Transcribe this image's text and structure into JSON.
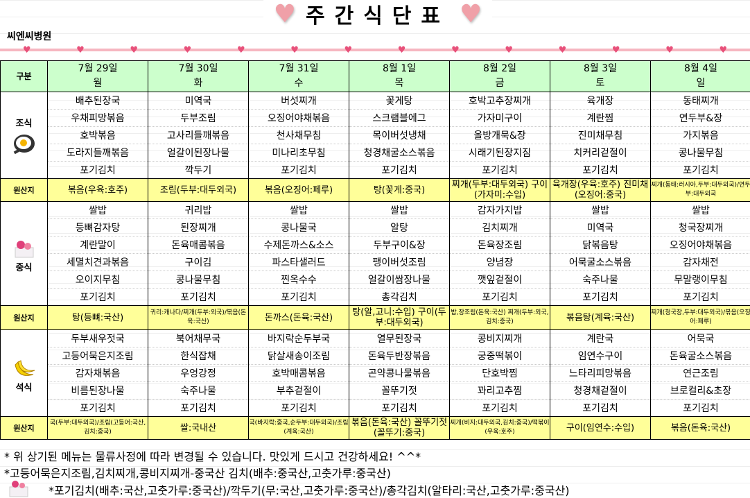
{
  "title": "주간식단표",
  "hospital": "씨엔씨병원",
  "header": {
    "label": "구분",
    "days": [
      {
        "date": "7월 29일",
        "dow": "월"
      },
      {
        "date": "7월 30일",
        "dow": "화"
      },
      {
        "date": "7월 31일",
        "dow": "수"
      },
      {
        "date": "8월 1일",
        "dow": "목"
      },
      {
        "date": "8월 2일",
        "dow": "금"
      },
      {
        "date": "8월 3일",
        "dow": "토"
      },
      {
        "date": "8월 4일",
        "dow": "일"
      }
    ]
  },
  "origin_label": "원산지",
  "meals": [
    {
      "label": "조식",
      "icon": "fried-egg-icon",
      "menus": [
        [
          "배추된장국",
          "우채피망볶음",
          "호박볶음",
          "도라지들깨볶음",
          "포기김치"
        ],
        [
          "미역국",
          "두부조림",
          "고사리들깨볶음",
          "얼갈이된장나물",
          "깍두기"
        ],
        [
          "버섯찌개",
          "오징어야채볶음",
          "천사채무침",
          "미나리초무침",
          "포기김치"
        ],
        [
          "꽃게탕",
          "스크램블에그",
          "목이버섯냉채",
          "청경채굴소스볶음",
          "포기김치"
        ],
        [
          "호박고추장찌개",
          "가자미구이",
          "올방개묵&장",
          "시래기된장지짐",
          "포기김치"
        ],
        [
          "육개장",
          "계란찜",
          "진미채무침",
          "치커리겉절이",
          "포기김치"
        ],
        [
          "동태찌개",
          "연두부&장",
          "가지볶음",
          "콩나물무침",
          "포기김치"
        ]
      ],
      "origin": [
        "볶음(우육:호주)",
        "조림(두부:대두외국)",
        "볶음(오징어:페루)",
        "탕(꽃게:중국)",
        "찌개(두부:대두외국) 구이(가자미:수입)",
        "육개장(우육:호주) 진미채(오징어:중국)",
        "찌개(동태:러시아,두부:대두외국)/연두부:대두외국"
      ]
    },
    {
      "label": "중식",
      "icon": "cake-icon",
      "menus": [
        [
          "쌀밥",
          "등뼈감자탕",
          "계란말이",
          "세멸치견과볶음",
          "오이지무침",
          "포기김치"
        ],
        [
          "귀리밥",
          "된장찌개",
          "돈육매콤볶음",
          "구이김",
          "콩나물무침",
          "포기김치"
        ],
        [
          "쌀밥",
          "콩나물국",
          "수제돈까스&소스",
          "파스타샐러드",
          "찐옥수수",
          "포기김치"
        ],
        [
          "쌀밥",
          "알탕",
          "두부구이&장",
          "팽이버섯조림",
          "얼갈이쌈장나물",
          "총각김치"
        ],
        [
          "감자가지밥",
          "김치찌개",
          "돈육장조림",
          "양념장",
          "깻잎겉절이",
          "포기김치"
        ],
        [
          "쌀밥",
          "미역국",
          "닭볶음탕",
          "어묵굴소스볶음",
          "숙주나물",
          "포기김치"
        ],
        [
          "쌀밥",
          "청국장찌개",
          "오징어야채볶음",
          "감자채전",
          "무말랭이무침",
          "포기김치"
        ]
      ],
      "origin": [
        "탕(등뼈:국산)",
        "귀리:캐나다/찌개(두부:외국)/볶음(돈육:국산)",
        "돈까스(돈육:국산)",
        "탕(알,고니:수입) 구이(두부:대두외국)",
        "밥,장조림(돈육:국산) 찌개(두부:외국,김치:중국)",
        "볶음탕(계육:국산)",
        "찌개(청국장,두부:대두외국)/볶음(오징어:페루)"
      ]
    },
    {
      "label": "석식",
      "icon": "banana-icon",
      "menus": [
        [
          "두부새우젓국",
          "고등어묵은지조림",
          "감자채볶음",
          "비름된장나물",
          "포기김치"
        ],
        [
          "북어채무국",
          "한식잡채",
          "우엉강정",
          "숙주나물",
          "포기김치"
        ],
        [
          "바지락순두부국",
          "닭살새송이조림",
          "호박매콤볶음",
          "부추겉절이",
          "포기김치"
        ],
        [
          "열무된장국",
          "돈육두반장볶음",
          "곤약콩나물볶음",
          "꼴뚜기젓",
          "포기김치"
        ],
        [
          "콩비지찌개",
          "궁중떡볶이",
          "단호박찜",
          "꽈리고추찜",
          "포기김치"
        ],
        [
          "계란국",
          "임연수구이",
          "느타리피망볶음",
          "청경채겉절이",
          "포기김치"
        ],
        [
          "어묵국",
          "돈육굴소스볶음",
          "연근조림",
          "브로컬리&초장",
          "포기김치"
        ]
      ],
      "origin": [
        "국(두부:대두외국)/조림(고등어:국산,김치:중국)",
        "쌀:국내산",
        "국(바지락:중국,순두부:대두외국)/조림(계육:국산)",
        "볶음(돈육:국산) 꼴뚜기젓(꼴뚜기:중국)",
        "찌개(비지:대두외국,김치:중국)/떡볶이(우육:호주)",
        "구이(임연수:수입)",
        "볶음(돈육:국산)"
      ]
    }
  ],
  "footer": [
    "* 위 상기된 메뉴는 물류사정에 따라 변경될 수 있습니다.  맛있게 드시고 건강하세요! ^^*",
    "*고등어묵은지조림,김치찌개,콩비지찌개-중국산 김치(배추:중국산,고춧가루:중국산)",
    "*포기김치(배추:국산,고춧가루:중국산)/깍두기(무:국산,고춧가루:중국산)/총각김치(알타리:국산,고춧가루:중국산)"
  ],
  "colors": {
    "header_bg": "#ccffcc",
    "origin_bg": "#ffff99",
    "heart": "#e8507a"
  }
}
